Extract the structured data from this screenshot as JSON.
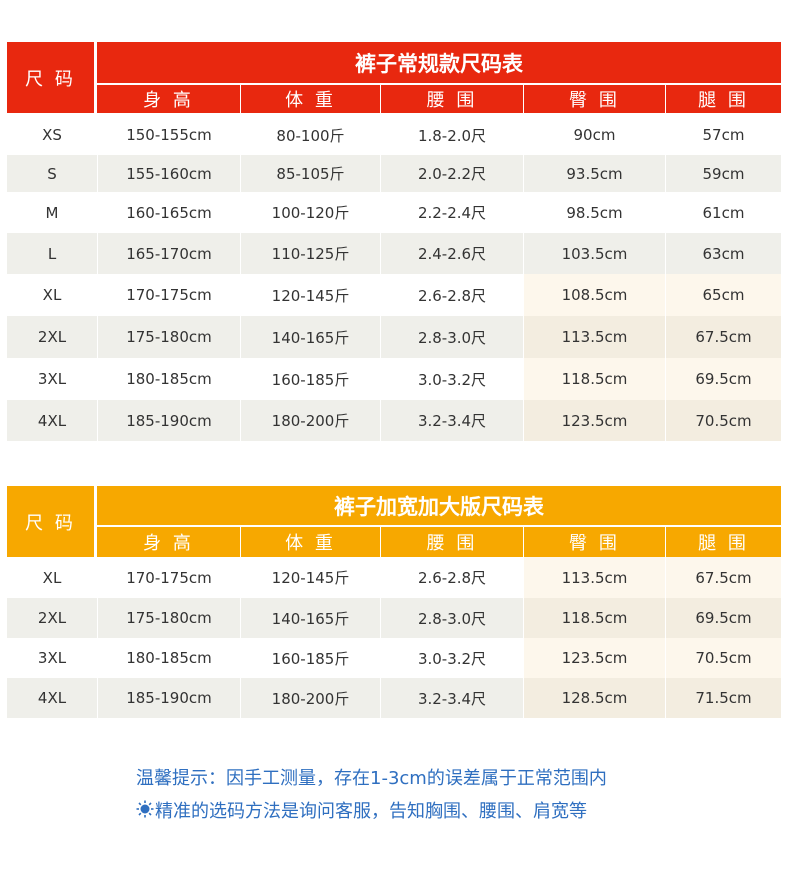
{
  "tables": [
    {
      "title": "裤子常规款尺码表",
      "corner": "尺 码",
      "headers": [
        "身 高",
        "体 重",
        "腰 围",
        "臀 围",
        "腿 围"
      ],
      "rows": [
        [
          "XS",
          "150-155cm",
          "80-100斤",
          "1.8-2.0尺",
          "90cm",
          "57cm"
        ],
        [
          "S",
          "155-160cm",
          "85-105斤",
          "2.0-2.2尺",
          "93.5cm",
          "59cm"
        ],
        [
          "M",
          "160-165cm",
          "100-120斤",
          "2.2-2.4尺",
          "98.5cm",
          "61cm"
        ],
        [
          "L",
          "165-170cm",
          "110-125斤",
          "2.4-2.6尺",
          "103.5cm",
          "63cm"
        ],
        [
          "XL",
          "170-175cm",
          "120-145斤",
          "2.6-2.8尺",
          "108.5cm",
          "65cm"
        ],
        [
          "2XL",
          "175-180cm",
          "140-165斤",
          "2.8-3.0尺",
          "113.5cm",
          "67.5cm"
        ],
        [
          "3XL",
          "180-185cm",
          "160-185斤",
          "3.0-3.2尺",
          "118.5cm",
          "69.5cm"
        ],
        [
          "4XL",
          "185-190cm",
          "180-200斤",
          "3.2-3.4尺",
          "123.5cm",
          "70.5cm"
        ]
      ]
    },
    {
      "title": "裤子加宽加大版尺码表",
      "corner": "尺 码",
      "headers": [
        "身 高",
        "体 重",
        "腰 围",
        "臀 围",
        "腿 围"
      ],
      "rows": [
        [
          "XL",
          "170-175cm",
          "120-145斤",
          "2.6-2.8尺",
          "113.5cm",
          "67.5cm"
        ],
        [
          "2XL",
          "175-180cm",
          "140-165斤",
          "2.8-3.0尺",
          "118.5cm",
          "69.5cm"
        ],
        [
          "3XL",
          "180-185cm",
          "160-185斤",
          "3.0-3.2尺",
          "123.5cm",
          "70.5cm"
        ],
        [
          "4XL",
          "185-190cm",
          "180-200斤",
          "3.2-3.4尺",
          "128.5cm",
          "71.5cm"
        ]
      ]
    }
  ],
  "notes": [
    "温馨提示：因手工测量，存在1-3cm的误差属于正常范围内",
    "精准的选码方法是询问客服，告知胸围、腰围、肩宽等"
  ]
}
